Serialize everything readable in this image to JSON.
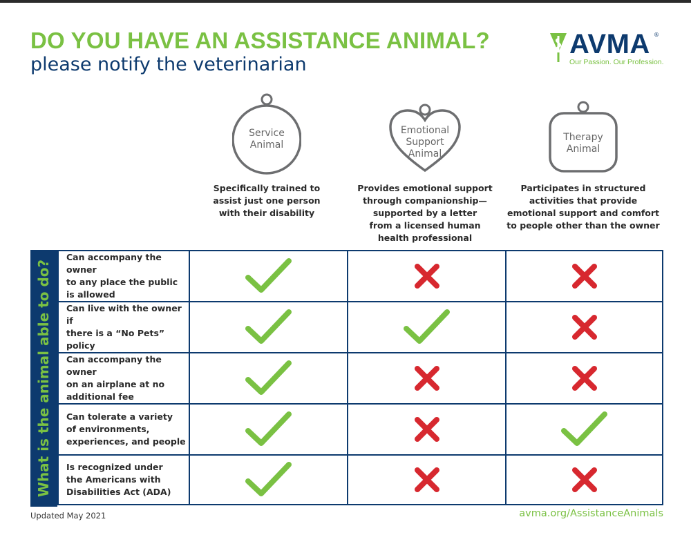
{
  "header": {
    "title": "DO YOU HAVE AN ASSISTANCE ANIMAL?",
    "subtitle": "please notify the veterinarian"
  },
  "logo": {
    "name": "AVMA",
    "tagline": "Our Passion. Our Profession.",
    "registered": "®"
  },
  "columns": [
    {
      "tag_shape": "circle-tag",
      "label_lines": [
        "Service",
        "Animal"
      ],
      "description_lines": [
        "Specifically trained to",
        "assist just one person",
        "with their disability"
      ]
    },
    {
      "tag_shape": "heart-tag",
      "label_lines": [
        "Emotional",
        "Support",
        "Animal"
      ],
      "description_lines": [
        "Provides emotional support",
        "through companionship—",
        "supported by a letter",
        "from a licensed human",
        "health professional"
      ]
    },
    {
      "tag_shape": "rounded-square-tag",
      "label_lines": [
        "Therapy",
        "Animal"
      ],
      "description_lines": [
        "Participates in structured",
        "activities that provide",
        "emotional support and comfort",
        "to people other than the owner"
      ]
    }
  ],
  "sidebar_label": "What is the animal able to do?",
  "rows": [
    {
      "question_lines": [
        "Can accompany the owner",
        "to any place the public",
        "is allowed"
      ],
      "answers": [
        "yes",
        "no",
        "no"
      ]
    },
    {
      "question_lines": [
        "Can live with the owner if",
        "there is a “No Pets” policy"
      ],
      "answers": [
        "yes",
        "yes",
        "no"
      ]
    },
    {
      "question_lines": [
        "Can accompany the owner",
        "on an airplane at no",
        "additional fee"
      ],
      "answers": [
        "yes",
        "no",
        "no"
      ]
    },
    {
      "question_lines": [
        "Can tolerate a variety",
        "of environments,",
        "experiences, and people"
      ],
      "answers": [
        "yes",
        "no",
        "yes"
      ]
    },
    {
      "question_lines": [
        "Is recognized under",
        "the Americans with",
        "Disabilities Act (ADA)"
      ],
      "answers": [
        "yes",
        "no",
        "no"
      ]
    }
  ],
  "footer": {
    "updated": "Updated May 2021",
    "url": "avma.org/AssistanceAnimals"
  },
  "colors": {
    "green": "#7ac143",
    "navy": "#0d3a6e",
    "red": "#d7282f",
    "tag_gray": "#6d6e70"
  }
}
